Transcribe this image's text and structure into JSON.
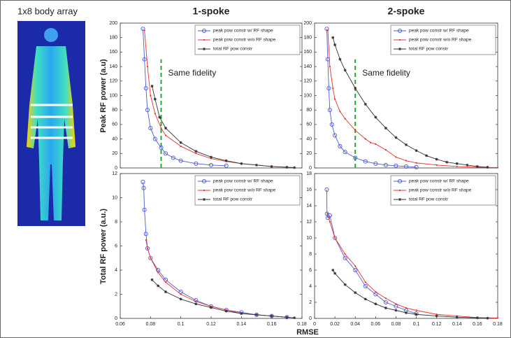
{
  "figure": {
    "image_label": "1x8 body array",
    "column_titles": [
      "1-spoke",
      "2-spoke"
    ],
    "row_labels": [
      "Peak RF power (a.u)",
      "Total RF power (a.u.)"
    ],
    "xlabel": "RMSE"
  },
  "chart_data": [
    {
      "type": "line",
      "xlim": [
        0.06,
        0.18
      ],
      "ylim": [
        0,
        200
      ],
      "yticks": [
        0,
        20,
        40,
        60,
        80,
        100,
        120,
        140,
        160,
        180,
        200
      ],
      "annotations": [
        {
          "text": "Same fidelity"
        }
      ],
      "reference_line": {
        "x": 0.087,
        "y": [
          0,
          150
        ],
        "color": "#22aa33"
      },
      "series": [
        {
          "name": "peak pow constr w/ RF shape",
          "color": "#4f5bd5",
          "x": [
            0.075,
            0.076,
            0.077,
            0.078,
            0.08,
            0.083,
            0.087,
            0.09,
            0.095,
            0.1,
            0.11,
            0.12,
            0.13
          ],
          "values": [
            192,
            150,
            110,
            80,
            55,
            40,
            28,
            20,
            14,
            10,
            6,
            4,
            3
          ]
        },
        {
          "name": "peak pow constr w/o RF shape",
          "color": "#e8322d",
          "x": [
            0.076,
            0.078,
            0.08,
            0.083,
            0.087,
            0.09,
            0.1,
            0.11,
            0.12,
            0.13,
            0.14,
            0.15,
            0.16,
            0.17
          ],
          "values": [
            190,
            140,
            100,
            75,
            55,
            45,
            30,
            20,
            13,
            9,
            6,
            4,
            2,
            1
          ]
        },
        {
          "name": "total RF pow constr",
          "color": "#333333",
          "x": [
            0.081,
            0.083,
            0.086,
            0.09,
            0.1,
            0.11,
            0.12,
            0.13,
            0.14,
            0.15,
            0.16,
            0.17,
            0.175
          ],
          "values": [
            113,
            95,
            70,
            55,
            35,
            23,
            15,
            10,
            6,
            4,
            2,
            1,
            0.5
          ]
        }
      ]
    },
    {
      "type": "line",
      "xlim": [
        0,
        0.18
      ],
      "ylim": [
        0,
        200
      ],
      "yticks": [
        0,
        20,
        40,
        60,
        80,
        100,
        120,
        140,
        160,
        180,
        200
      ],
      "annotations": [
        {
          "text": "Same fidelity"
        }
      ],
      "reference_line": {
        "x": 0.04,
        "y": [
          0,
          150
        ],
        "color": "#22aa33"
      },
      "series": [
        {
          "name": "peak pow constr w/ RF shape",
          "color": "#4f5bd5",
          "x": [
            0.012,
            0.013,
            0.014,
            0.015,
            0.017,
            0.02,
            0.025,
            0.03,
            0.04,
            0.05,
            0.06,
            0.07,
            0.08,
            0.09,
            0.1
          ],
          "values": [
            192,
            150,
            110,
            80,
            60,
            45,
            30,
            22,
            14,
            9,
            6,
            4,
            3,
            2,
            1
          ]
        },
        {
          "name": "peak pow constr w/o RF shape",
          "color": "#e8322d",
          "x": [
            0.013,
            0.015,
            0.018,
            0.02,
            0.025,
            0.03,
            0.04,
            0.05,
            0.055,
            0.06,
            0.07,
            0.08,
            0.09,
            0.1,
            0.12,
            0.14,
            0.16,
            0.18
          ],
          "values": [
            190,
            140,
            110,
            95,
            78,
            68,
            52,
            40,
            35,
            33,
            25,
            15,
            10,
            7,
            4,
            2,
            1,
            0.5
          ]
        },
        {
          "name": "total RF pow constr",
          "color": "#333333",
          "x": [
            0.018,
            0.02,
            0.025,
            0.03,
            0.04,
            0.05,
            0.06,
            0.07,
            0.08,
            0.09,
            0.1,
            0.11,
            0.12,
            0.13,
            0.14,
            0.15,
            0.16,
            0.17
          ],
          "values": [
            180,
            170,
            150,
            135,
            110,
            88,
            70,
            55,
            42,
            32,
            24,
            17,
            12,
            8,
            6,
            4,
            2,
            1
          ]
        }
      ]
    },
    {
      "type": "line",
      "xlim": [
        0.06,
        0.18
      ],
      "xticks": [
        0.06,
        0.08,
        0.1,
        0.12,
        0.14,
        0.16,
        0.18
      ],
      "ylim": [
        0,
        12
      ],
      "yticks": [
        0,
        2,
        4,
        6,
        8,
        10,
        12
      ],
      "series": [
        {
          "name": "peak pow constr w/ RF shape",
          "color": "#4f5bd5",
          "x": [
            0.075,
            0.0755,
            0.076,
            0.077,
            0.078,
            0.08,
            0.085,
            0.09,
            0.1,
            0.11,
            0.12,
            0.13,
            0.14,
            0.15,
            0.16,
            0.17
          ],
          "values": [
            11.3,
            10.8,
            9,
            7,
            5.8,
            5,
            4,
            3.2,
            2.2,
            1.5,
            1,
            0.7,
            0.5,
            0.3,
            0.2,
            0.1
          ]
        },
        {
          "name": "peak pow constr w/o RF shape",
          "color": "#e8322d",
          "x": [
            0.077,
            0.078,
            0.08,
            0.085,
            0.09,
            0.1,
            0.11,
            0.12,
            0.13,
            0.14,
            0.15,
            0.16,
            0.17
          ],
          "values": [
            6.5,
            5.8,
            5,
            3.8,
            3,
            2,
            1.4,
            1,
            0.7,
            0.4,
            0.3,
            0.2,
            0.1
          ]
        },
        {
          "name": "total RF pow constr",
          "color": "#333333",
          "x": [
            0.081,
            0.085,
            0.09,
            0.1,
            0.11,
            0.12,
            0.13,
            0.14,
            0.15,
            0.16,
            0.17,
            0.175
          ],
          "values": [
            3.2,
            2.7,
            2.2,
            1.6,
            1.2,
            0.9,
            0.6,
            0.4,
            0.3,
            0.2,
            0.1,
            0.05
          ]
        }
      ]
    },
    {
      "type": "line",
      "xlim": [
        0,
        0.18
      ],
      "xticks": [
        0,
        0.02,
        0.04,
        0.06,
        0.08,
        0.1,
        0.12,
        0.14,
        0.16,
        0.18
      ],
      "ylim": [
        0,
        18
      ],
      "yticks": [
        0,
        2,
        4,
        6,
        8,
        10,
        12,
        14,
        16,
        18
      ],
      "series": [
        {
          "name": "peak pow constr w/ RF shape",
          "color": "#4f5bd5",
          "x": [
            0.012,
            0.0122,
            0.013,
            0.015,
            0.02,
            0.03,
            0.04,
            0.05,
            0.06,
            0.07,
            0.08,
            0.09,
            0.1
          ],
          "values": [
            16,
            13,
            12.5,
            12.8,
            10,
            7.5,
            6,
            4,
            3,
            2,
            1.5,
            1,
            0.6
          ]
        },
        {
          "name": "peak pow constr w/o RF shape",
          "color": "#e8322d",
          "x": [
            0.013,
            0.015,
            0.02,
            0.03,
            0.04,
            0.05,
            0.06,
            0.07,
            0.08,
            0.09,
            0.1,
            0.12,
            0.14,
            0.16,
            0.18
          ],
          "values": [
            13,
            12,
            10,
            8,
            6.5,
            4.5,
            3.3,
            2.5,
            1.8,
            1.3,
            1,
            0.5,
            0.3,
            0.1,
            0.05
          ]
        },
        {
          "name": "total RF pow constr",
          "color": "#333333",
          "x": [
            0.018,
            0.02,
            0.03,
            0.04,
            0.05,
            0.06,
            0.07,
            0.08,
            0.09,
            0.1,
            0.12,
            0.14,
            0.16,
            0.17
          ],
          "values": [
            6,
            5.6,
            4.2,
            3.2,
            2.4,
            1.8,
            1.3,
            1,
            0.7,
            0.5,
            0.3,
            0.15,
            0.07,
            0.03
          ]
        }
      ]
    }
  ]
}
